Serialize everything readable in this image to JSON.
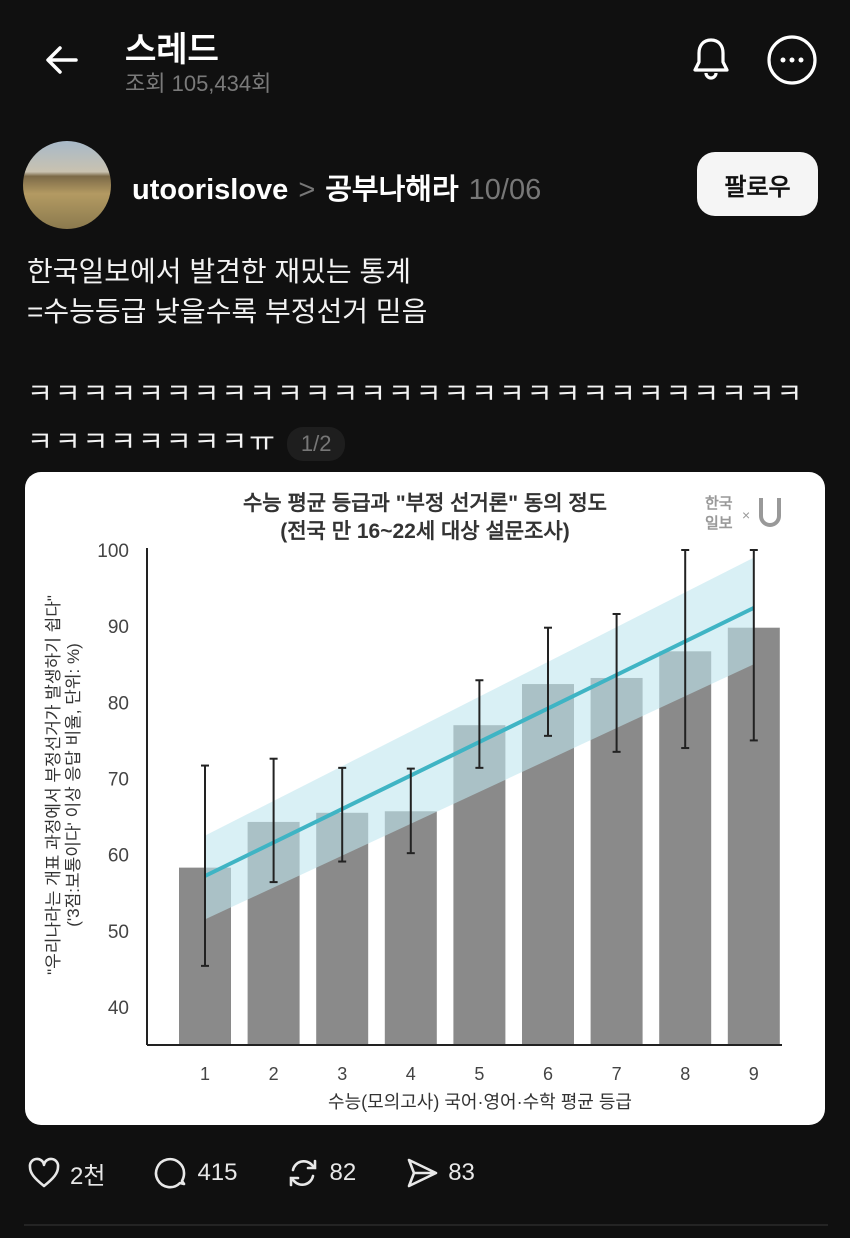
{
  "header": {
    "title": "스레드",
    "views": "조회 105,434회"
  },
  "post": {
    "username": "utoorislove",
    "separator": ">",
    "community": "공부나해라",
    "date": "10/06",
    "follow_label": "팔로우",
    "lines": [
      "한국일보에서 발견한 재밌는 통계",
      "=수능등급 낮을수록 부정선거 믿음"
    ],
    "laugh_line1": "ㅋㅋㅋㅋㅋㅋㅋㅋㅋㅋㅋㅋㅋㅋㅋㅋㅋㅋㅋㅋㅋㅋㅋㅋㅋㅋㅋㅋ",
    "laugh_line2": "ㅋㅋㅋㅋㅋㅋㅋㅋㅠ",
    "pager": "1/2"
  },
  "actions": {
    "likes": "2천",
    "comments": "415",
    "reposts": "82",
    "shares": "83"
  },
  "chart_data": {
    "type": "bar",
    "title": "수능 평균 등급과 \"부정 선거론\" 동의 정도",
    "subtitle": "(전국 만 16~22세 대상 설문조사)",
    "logo": "한국일보 × U",
    "ylabel": "\"우리나라는 개표 과정에서 부정선거가 발생하기 쉽다\"",
    "ylabel2": "('3점:보통이다' 이상 응답 비율, 단위: %)",
    "xlabel": "수능(모의고사) 국어·영어·수학 평균 등급",
    "categories": [
      "1",
      "2",
      "3",
      "4",
      "5",
      "6",
      "7",
      "8",
      "9"
    ],
    "values": [
      58.3,
      64.3,
      65.5,
      65.7,
      77.0,
      82.4,
      83.2,
      86.7,
      89.8
    ],
    "error_low": [
      45.4,
      56.4,
      59.1,
      60.2,
      71.4,
      75.6,
      73.5,
      74.0,
      75.0
    ],
    "error_high": [
      71.7,
      72.6,
      71.4,
      71.3,
      82.9,
      89.8,
      91.6,
      100,
      100
    ],
    "trend": {
      "start": 57.2,
      "end": 92.4,
      "band_start": [
        51.5,
        62.5
      ],
      "band_end": [
        85.0,
        99.0
      ]
    },
    "yticks": [
      40,
      50,
      60,
      70,
      80,
      90,
      100
    ],
    "ylim": [
      35,
      100
    ],
    "grid": false,
    "colors": {
      "bar": "#8a8a8a",
      "trend": "#3fb4c4",
      "band": "#bfe6ef",
      "error": "#222222"
    }
  }
}
